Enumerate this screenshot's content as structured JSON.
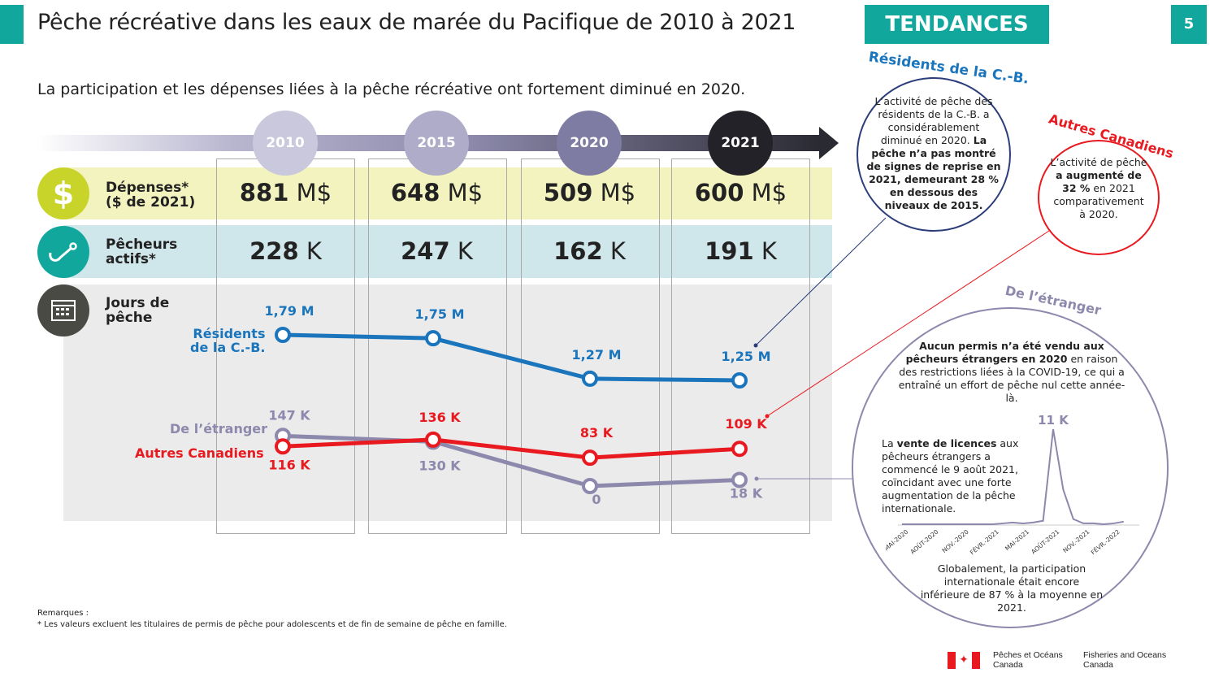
{
  "header": {
    "title": "Pêche récréative dans les eaux de marée du Pacifique de 2010 à 2021",
    "tag": "TENDANCES",
    "page": "5"
  },
  "subtitle": "La participation et les dépenses liées à la pêche récréative ont fortement diminué en 2020.",
  "colors": {
    "teal": "#12a79d",
    "blue": "#1a75bc",
    "red": "#e8191f",
    "purple": "#8c89ad",
    "yellow": "#f3f3bf",
    "lightblue": "#cfe6ea"
  },
  "years": [
    "2010",
    "2015",
    "2020",
    "2021"
  ],
  "rows": {
    "spend": {
      "label1": "Dépenses*",
      "label2": "($ de 2021)",
      "unit": "M$",
      "values": [
        "881",
        "648",
        "509",
        "600"
      ],
      "icon": "dollar-icon"
    },
    "anglers": {
      "label1": "Pêcheurs",
      "label2": "actifs*",
      "unit": "K",
      "values": [
        "228",
        "247",
        "162",
        "191"
      ],
      "icon": "fishing-hook-icon"
    },
    "days": {
      "label1": "Jours de",
      "label2": "pêche",
      "icon": "calendar-icon"
    }
  },
  "chart_data": [
    {
      "type": "line",
      "categories": [
        "2010",
        "2015",
        "2020",
        "2021"
      ],
      "series": [
        {
          "name": "Résidents de la C.-B.",
          "values": [
            1.79,
            1.75,
            1.27,
            1.25
          ],
          "labels": [
            "1,79 M",
            "1,75 M",
            "1,27 M",
            "1,25 M"
          ],
          "color": "#1a75bc"
        },
        {
          "name": "Autres Canadiens",
          "values": [
            116,
            136,
            83,
            109
          ],
          "labels": [
            "116 K",
            "136 K",
            "83 K",
            "109 K"
          ],
          "color": "#e8191f"
        },
        {
          "name": "De l’étranger",
          "values": [
            147,
            130,
            0,
            18
          ],
          "labels": [
            "147 K",
            "130 K",
            "0",
            "18 K"
          ],
          "color": "#8c89ad"
        }
      ],
      "series_labels": {
        "bc": [
          "Résidents",
          "de la C.-B."
        ],
        "other": "Autres Canadiens",
        "foreign": "De l’étranger"
      }
    },
    {
      "type": "line",
      "ticks": [
        "MAI-2020",
        "AOÛT-2020",
        "NOV.-2020",
        "FÉVR.-2021",
        "MAI-2021",
        "AOÛT-2021",
        "NOV.-2021",
        "FÉVR.-2022"
      ],
      "months": [
        "2020-05",
        "2020-06",
        "2020-07",
        "2020-08",
        "2020-09",
        "2020-10",
        "2020-11",
        "2020-12",
        "2021-01",
        "2021-02",
        "2021-03",
        "2021-04",
        "2021-05",
        "2021-06",
        "2021-07",
        "2021-08",
        "2021-09",
        "2021-10",
        "2021-11",
        "2021-12",
        "2022-01",
        "2022-02",
        "2022-03"
      ],
      "values": [
        0,
        0,
        0,
        0,
        0,
        0,
        0,
        0,
        0,
        0,
        0.1,
        0.2,
        0.1,
        0.2,
        0.4,
        11,
        4,
        0.6,
        0.1,
        0.1,
        0,
        0.1,
        0.3
      ],
      "peak_label": "11 K",
      "unit": "K"
    }
  ],
  "bubbles": {
    "bc": {
      "title": "Résidents de la C.-B.",
      "text1": "L’activité de pêche des résidents de la C.-B. a considérablement diminué en 2020. ",
      "text2": "La pêche n’a pas montré de signes de reprise en 2021, demeurant 28 % en dessous des niveaux de 2015."
    },
    "other": {
      "title": "Autres Canadiens",
      "t1": "L’activité de pêche ",
      "b1": "a augmenté de 32 %",
      "t2": " en 2021 comparativement à 2020."
    },
    "foreign": {
      "title": "De l’étranger",
      "b1": "Aucun permis n’a été vendu aux pêcheurs étrangers en 2020",
      "t1": " en raison des restrictions liées à la COVID-19, ce qui a entraîné un effort de pêche nul cette année-là.",
      "t2": "La ",
      "b2": "vente de licences",
      "t3": " aux pêcheurs étrangers a commencé le 9 août 2021, coïncidant avec une forte augmentation de la pêche internationale.",
      "t4": "Globalement, la participation internationale était encore inférieure de 87 % à la moyenne en 2021."
    }
  },
  "notes": {
    "title": "Remarques :",
    "text": "* Les valeurs excluent les titulaires de permis de pêche pour adolescents et de fin de semaine de pêche en famille."
  },
  "footer": {
    "fr1": "Pêches et Océans",
    "fr2": "Canada",
    "en1": "Fisheries and Oceans",
    "en2": "Canada"
  }
}
